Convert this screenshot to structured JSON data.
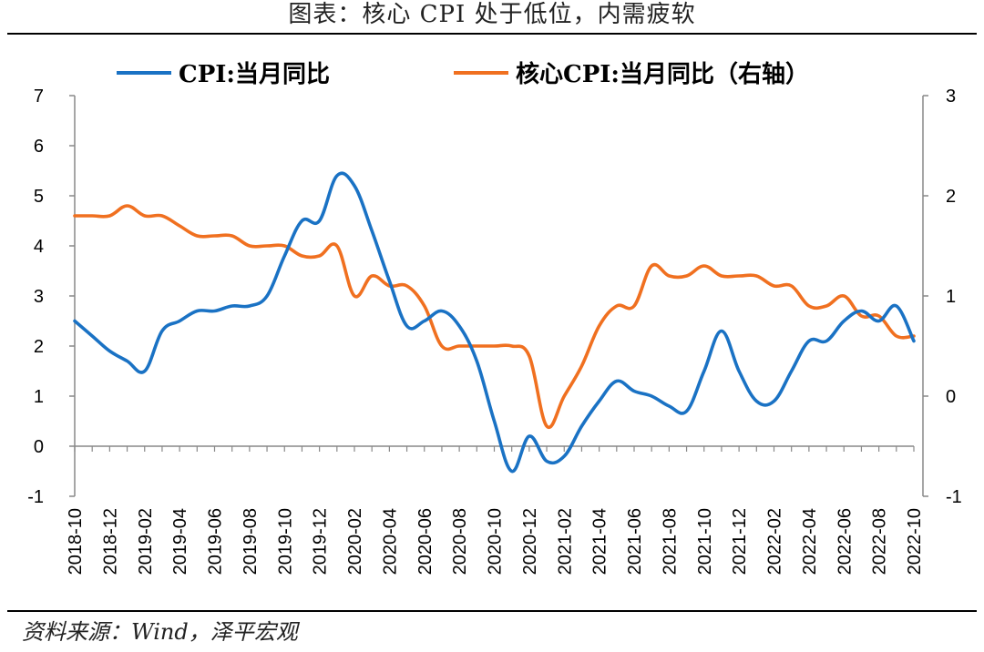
{
  "header": {
    "title": "图表：核心 CPI 处于低位，内需疲软"
  },
  "footer": {
    "source": "资料来源：Wind，泽平宏观"
  },
  "chart_data": {
    "type": "line",
    "title": "图表：核心 CPI 处于低位，内需疲软",
    "xlabel": "",
    "ylabel": "",
    "ylim_left": [
      -1,
      7
    ],
    "ylim_right": [
      -1,
      3
    ],
    "yticks_left": [
      "-1",
      "0",
      "1",
      "2",
      "3",
      "4",
      "5",
      "6",
      "7"
    ],
    "yticks_right": [
      "-1",
      "0",
      "1",
      "2",
      "3"
    ],
    "legend_position": "top",
    "grid": false,
    "x_tick_labels": [
      "2018-10",
      "2018-12",
      "2019-02",
      "2019-04",
      "2019-06",
      "2019-08",
      "2019-10",
      "2019-12",
      "2020-02",
      "2020-04",
      "2020-06",
      "2020-08",
      "2020-10",
      "2020-12",
      "2021-02",
      "2021-04",
      "2021-06",
      "2021-08",
      "2021-10",
      "2021-12",
      "2022-02",
      "2022-04",
      "2022-06",
      "2022-08",
      "2022-10"
    ],
    "x": [
      "2018-10",
      "2018-11",
      "2018-12",
      "2019-01",
      "2019-02",
      "2019-03",
      "2019-04",
      "2019-05",
      "2019-06",
      "2019-07",
      "2019-08",
      "2019-09",
      "2019-10",
      "2019-11",
      "2019-12",
      "2020-01",
      "2020-02",
      "2020-03",
      "2020-04",
      "2020-05",
      "2020-06",
      "2020-07",
      "2020-08",
      "2020-09",
      "2020-10",
      "2020-11",
      "2020-12",
      "2021-01",
      "2021-02",
      "2021-03",
      "2021-04",
      "2021-05",
      "2021-06",
      "2021-07",
      "2021-08",
      "2021-09",
      "2021-10",
      "2021-11",
      "2021-12",
      "2022-01",
      "2022-02",
      "2022-03",
      "2022-04",
      "2022-05",
      "2022-06",
      "2022-07",
      "2022-08",
      "2022-09",
      "2022-10"
    ],
    "series": [
      {
        "name": "CPI:当月同比",
        "axis": "left",
        "color": "#1a72c4",
        "values": [
          2.5,
          2.2,
          1.9,
          1.7,
          1.5,
          2.3,
          2.5,
          2.7,
          2.7,
          2.8,
          2.8,
          3.0,
          3.8,
          4.5,
          4.5,
          5.4,
          5.2,
          4.3,
          3.3,
          2.4,
          2.5,
          2.7,
          2.4,
          1.7,
          0.5,
          -0.5,
          0.2,
          -0.3,
          -0.2,
          0.4,
          0.9,
          1.3,
          1.1,
          1.0,
          0.8,
          0.7,
          1.5,
          2.3,
          1.5,
          0.9,
          0.9,
          1.5,
          2.1,
          2.1,
          2.5,
          2.7,
          2.5,
          2.8,
          2.1
        ]
      },
      {
        "name": "核心CPI:当月同比（右轴）",
        "axis": "right",
        "color": "#f07020",
        "values": [
          1.8,
          1.8,
          1.8,
          1.9,
          1.8,
          1.8,
          1.7,
          1.6,
          1.6,
          1.6,
          1.5,
          1.5,
          1.5,
          1.4,
          1.4,
          1.5,
          1.0,
          1.2,
          1.1,
          1.1,
          0.9,
          0.5,
          0.5,
          0.5,
          0.5,
          0.5,
          0.4,
          -0.3,
          0.0,
          0.3,
          0.7,
          0.9,
          0.9,
          1.3,
          1.2,
          1.2,
          1.3,
          1.2,
          1.2,
          1.2,
          1.1,
          1.1,
          0.9,
          0.9,
          1.0,
          0.8,
          0.8,
          0.6,
          0.6
        ]
      }
    ]
  }
}
